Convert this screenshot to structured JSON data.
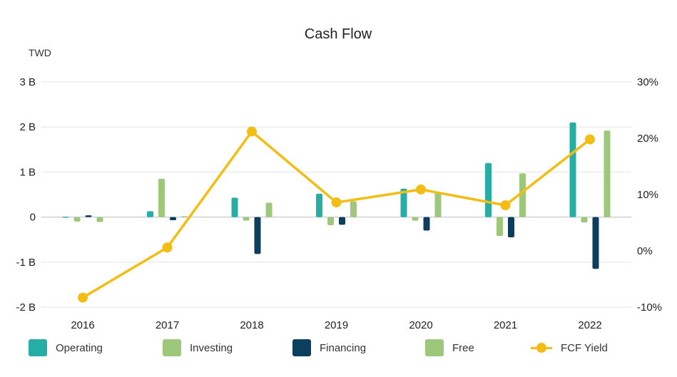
{
  "chart_data": {
    "type": "bar",
    "title": "Cash Flow",
    "y_unit": "TWD",
    "categories": [
      "2016",
      "2017",
      "2018",
      "2019",
      "2020",
      "2021",
      "2022"
    ],
    "ylim": [
      -2,
      3
    ],
    "y_ticks": [
      3,
      2,
      1,
      0,
      -1,
      -2
    ],
    "y_tick_labels": [
      "3 B",
      "2 B",
      "1 B",
      "0",
      "-1 B",
      "-2 B"
    ],
    "y2lim": [
      -10,
      30
    ],
    "y2_ticks": [
      30,
      20,
      10,
      0,
      -10
    ],
    "y2_tick_labels": [
      "30%",
      "20%",
      "10%",
      "0%",
      "-10%"
    ],
    "grid": true,
    "legend_position": "bottom",
    "series": [
      {
        "name": "Operating",
        "type": "bar",
        "axis": "left",
        "color": "#26ADA5",
        "values": [
          0.01,
          0.13,
          0.43,
          0.52,
          0.63,
          1.2,
          2.1
        ]
      },
      {
        "name": "Investing",
        "type": "bar",
        "axis": "left",
        "color": "#9DC77A",
        "values": [
          -0.1,
          0.85,
          -0.08,
          -0.18,
          -0.08,
          -0.42,
          -0.12
        ]
      },
      {
        "name": "Financing",
        "type": "bar",
        "axis": "left",
        "color": "#0B3F5D",
        "values": [
          0.04,
          -0.07,
          -0.82,
          -0.17,
          -0.3,
          -0.45,
          -1.15
        ]
      },
      {
        "name": "Free",
        "type": "bar",
        "axis": "left",
        "color": "#9DC77A",
        "values": [
          -0.11,
          0.02,
          0.32,
          0.35,
          0.55,
          0.97,
          1.92
        ]
      },
      {
        "name": "FCF Yield",
        "type": "line",
        "axis": "right",
        "color": "#F2BD14",
        "values": [
          -8.3,
          0.6,
          21.2,
          8.6,
          10.9,
          8.1,
          19.8
        ]
      }
    ]
  }
}
